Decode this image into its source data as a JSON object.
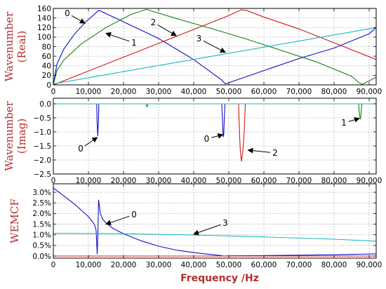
{
  "chart_data": {
    "type": "line",
    "xlabel": "Frequency /Hz",
    "x_ticks": [
      "0",
      "10,000",
      "20,000",
      "30,000",
      "40,000",
      "50,000",
      "60,000",
      "70,000",
      "80,000",
      "90,000"
    ],
    "xlim": [
      0,
      92000
    ],
    "colors": {
      "0": "#1010c8",
      "1": "#108010",
      "2": "#d01818",
      "3": "#18b8c0"
    },
    "panels": [
      {
        "id": "real",
        "ylabel_lines": [
          "Wavenumber",
          "(Real)"
        ],
        "ylim": [
          0,
          160
        ],
        "y_ticks": [
          0,
          20,
          40,
          60,
          80,
          100,
          120,
          140,
          160
        ],
        "y_tick_labels": [
          "0",
          "20",
          "40",
          "60",
          "80",
          "100",
          "120",
          "140",
          "160"
        ],
        "series": [
          {
            "name": "0",
            "x": [
              0,
              1000,
              3000,
              6000,
              9000,
              12000,
              13000,
              20000,
              30000,
              40000,
              48000,
              49000,
              60000,
              70000,
              80000,
              90000,
              92000
            ],
            "y": [
              0,
              43,
              75,
              106,
              130,
              150,
              156,
              132,
              97,
              53,
              10,
              2,
              30,
              55,
              77,
              107,
              120
            ]
          },
          {
            "name": "1",
            "x": [
              0,
              1000,
              3000,
              8000,
              15000,
              22000,
              26500,
              35000,
              45000,
              55000,
              65000,
              75000,
              85000,
              87000,
              88000,
              92000
            ],
            "y": [
              0,
              30,
              52,
              86,
              120,
              147,
              158,
              139,
              118,
              96,
              72,
              48,
              18,
              5,
              1,
              16
            ]
          },
          {
            "name": "2",
            "x": [
              0,
              10000,
              20000,
              30000,
              40000,
              50000,
              53500,
              55000,
              60000,
              70000,
              80000,
              92000
            ],
            "y": [
              0,
              29,
              58,
              87,
              116,
              145,
              157,
              156,
              142,
              117,
              88,
              53
            ]
          },
          {
            "name": "3",
            "x": [
              0,
              92000
            ],
            "y": [
              2,
              120
            ]
          }
        ],
        "annotations": [
          {
            "text": "0",
            "tx": 4000,
            "ty": 150,
            "ax": 9000,
            "ay": 129
          },
          {
            "text": "1",
            "tx": 23000,
            "ty": 88,
            "ax": 15000,
            "ay": 108
          },
          {
            "text": "2",
            "tx": 28500,
            "ty": 131,
            "ax": 35000,
            "ay": 103
          },
          {
            "text": "3",
            "tx": 41500,
            "ty": 97,
            "ax": 49000,
            "ay": 68
          }
        ]
      },
      {
        "id": "imag",
        "ylabel_lines": [
          "Wavenumber",
          "(Imag)"
        ],
        "ylim": [
          -2.5,
          0.2
        ],
        "y_ticks": [
          -2.5,
          -2.0,
          -1.5,
          -1.0,
          -0.5,
          0.0
        ],
        "y_tick_labels": [
          "−2.5",
          "−2.0",
          "−1.5",
          "−1.0",
          "−0.5",
          "0.0"
        ],
        "series": [
          {
            "name": "0",
            "x": [
              0,
              12350,
              12450,
              12650,
              12850,
              12950,
              13050,
              48000,
              48200,
              48350,
              48450,
              48550,
              48700,
              48900,
              92000
            ],
            "y": [
              0,
              0,
              -0.6,
              -1.15,
              -0.6,
              0,
              0,
              0,
              -0.6,
              -1.1,
              -1.18,
              -1.1,
              -0.6,
              0,
              0
            ]
          },
          {
            "name": "1",
            "x": [
              0,
              26400,
              26600,
              26800,
              27000,
              87000,
              87200,
              87500,
              87700,
              87900,
              92000
            ],
            "y": [
              0,
              0,
              -0.1,
              -0.1,
              0,
              0,
              -0.35,
              -0.55,
              -0.35,
              0,
              0
            ]
          },
          {
            "name": "2",
            "x": [
              0,
              52800,
              52900,
              53100,
              53300,
              53600,
              54000,
              54400,
              54700,
              92000
            ],
            "y": [
              0,
              0,
              -0.5,
              -1.2,
              -1.7,
              -2.05,
              -1.7,
              -1.0,
              0,
              0
            ]
          },
          {
            "name": "3",
            "x": [
              0,
              92000
            ],
            "y": [
              0,
              0
            ]
          }
        ],
        "annotations": [
          {
            "text": "0",
            "tx": 7800,
            "ty": -1.6,
            "ax": 12500,
            "ay": -1.2
          },
          {
            "text": "0",
            "tx": 43700,
            "ty": -1.25,
            "ax": 48300,
            "ay": -1.1
          },
          {
            "text": "2",
            "tx": 63200,
            "ty": -1.75,
            "ax": 55500,
            "ay": -1.65
          },
          {
            "text": "1",
            "tx": 82800,
            "ty": -0.68,
            "ax": 87200,
            "ay": -0.52
          }
        ]
      },
      {
        "id": "wemcf",
        "ylabel_lines": [
          "WEMCF"
        ],
        "ylim": [
          -0.1,
          3.4
        ],
        "y_ticks": [
          0.0,
          0.5,
          1.0,
          1.5,
          2.0,
          2.5,
          3.0
        ],
        "y_tick_labels": [
          "0.0%",
          "0.5%",
          "1.0%",
          "1.5%",
          "2.0%",
          "2.5%",
          "3.0%"
        ],
        "series": [
          {
            "name": "0",
            "x": [
              0,
              2000,
              4000,
              6000,
              8000,
              10000,
              11000,
              11800,
              12200,
              12500,
              12700,
              12900,
              13100,
              13400,
              14000,
              15000,
              17000,
              20000,
              25000,
              30000,
              35000,
              40000,
              45000,
              48000,
              48500,
              50000,
              60000,
              70000,
              80000,
              92000
            ],
            "y": [
              3.2,
              2.95,
              2.7,
              2.45,
              2.15,
              1.85,
              1.65,
              1.45,
              1.2,
              0.08,
              1.1,
              2.65,
              2.4,
              2.0,
              1.75,
              1.55,
              1.3,
              1.05,
              0.72,
              0.46,
              0.28,
              0.16,
              0.07,
              0.02,
              0.0,
              0.01,
              0.02,
              0.04,
              0.06,
              0.1
            ]
          },
          {
            "name": "2",
            "x": [
              0,
              92000
            ],
            "y": [
              0.0,
              0.0
            ]
          },
          {
            "name": "3",
            "x": [
              0,
              20000,
              40000,
              60000,
              80000,
              92000
            ],
            "y": [
              1.07,
              1.05,
              0.99,
              0.9,
              0.79,
              0.7
            ]
          }
        ],
        "annotations": [
          {
            "text": "0",
            "tx": 23000,
            "ty": 1.95,
            "ax": 15000,
            "ay": 1.5
          },
          {
            "text": "3",
            "tx": 49000,
            "ty": 1.55,
            "ax": 40000,
            "ay": 1.03
          }
        ]
      }
    ]
  }
}
